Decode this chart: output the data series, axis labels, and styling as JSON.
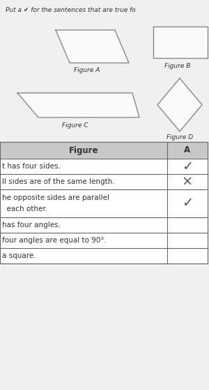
{
  "bg_color": "#d8d8d8",
  "page_color": "#f0f0ee",
  "title_text": "Put a ✔ for the sentences that are true fo",
  "fig_a_label": "Figure A",
  "fig_b_label": "Figure B",
  "fig_c_label": "Figure C",
  "fig_d_label": "Figure D",
  "table_headers": [
    "Figure",
    "A"
  ],
  "table_rows": [
    "t has four sides.",
    "ll sides are of the same length.",
    "he opposite sides are parallel\n  each other.",
    "has four angles.",
    "four angles are equal to 90°.",
    "a square."
  ],
  "col_a_marks": [
    "✓",
    "×",
    "✓",
    "",
    "",
    ""
  ],
  "header_bg": "#c8c8c8",
  "line_color": "#666666",
  "text_color": "#333333",
  "check_color": "#555555",
  "cross_color": "#555555",
  "shape_line_color": "#888888",
  "shape_fill": "#fafafa"
}
